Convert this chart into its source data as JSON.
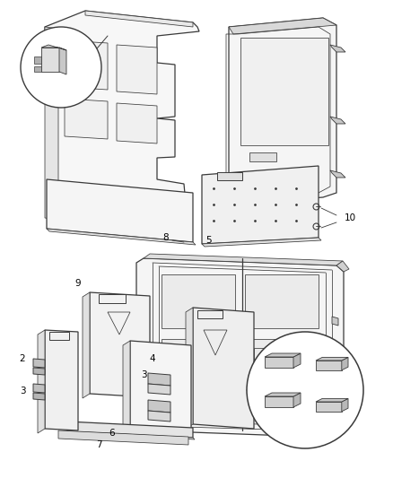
{
  "bg_color": "#ffffff",
  "line_color": "#3a3a3a",
  "lw_main": 0.9,
  "lw_thin": 0.55,
  "lw_thick": 1.3,
  "label_fontsize": 7.5,
  "fig_width": 4.38,
  "fig_height": 5.33
}
